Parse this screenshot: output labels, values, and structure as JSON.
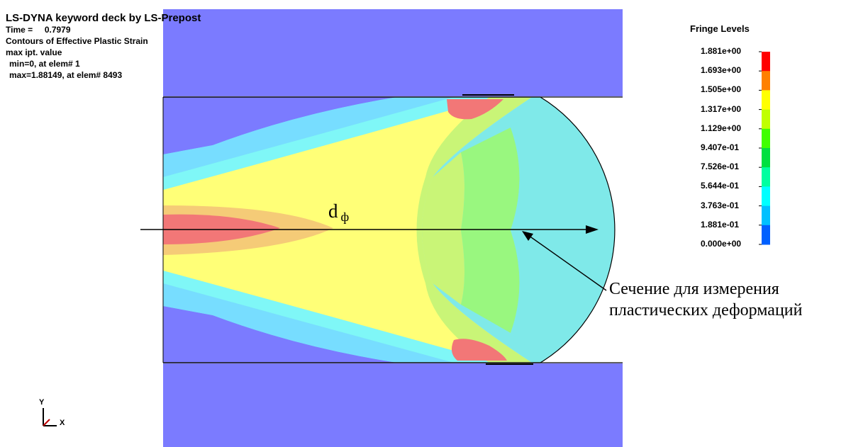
{
  "header": {
    "title": "LS-DYNA keyword deck by LS-Prepost",
    "time_label": "Time =",
    "time_value": "0.7979",
    "contours": "Contours of Effective Plastic Strain",
    "mode": "max ipt. value",
    "min_line": "min=0, at elem# 1",
    "max_line": "max=1.88149, at elem# 8493"
  },
  "legend": {
    "title": "Fringe Levels",
    "levels": [
      "1.881e+00",
      "1.693e+00",
      "1.505e+00",
      "1.317e+00",
      "1.129e+00",
      "9.407e-01",
      "7.526e-01",
      "5.644e-01",
      "3.763e-01",
      "1.881e-01",
      "0.000e+00"
    ],
    "colors": [
      "#ff0000",
      "#ff8000",
      "#ffff00",
      "#c0ff00",
      "#40ff00",
      "#00e040",
      "#00ffa0",
      "#00ffff",
      "#00c0ff",
      "#0060ff",
      "#0000ff"
    ]
  },
  "annotation": {
    "dimension_label": "d",
    "dimension_sub": "ф",
    "section_line1": "Сечение для измерения",
    "section_line2": "пластических деформаций"
  },
  "axes": {
    "y": "Y",
    "x": "X"
  },
  "palette": {
    "tool": "#7b7bff",
    "red": "#f27777",
    "orange": "#f5cb77",
    "yellow": "#ffff77",
    "lime": "#c9f577",
    "green": "#99f77f",
    "cyan": "#7ff7f7",
    "sky": "#77ddff",
    "blue": "#7b7bff"
  }
}
